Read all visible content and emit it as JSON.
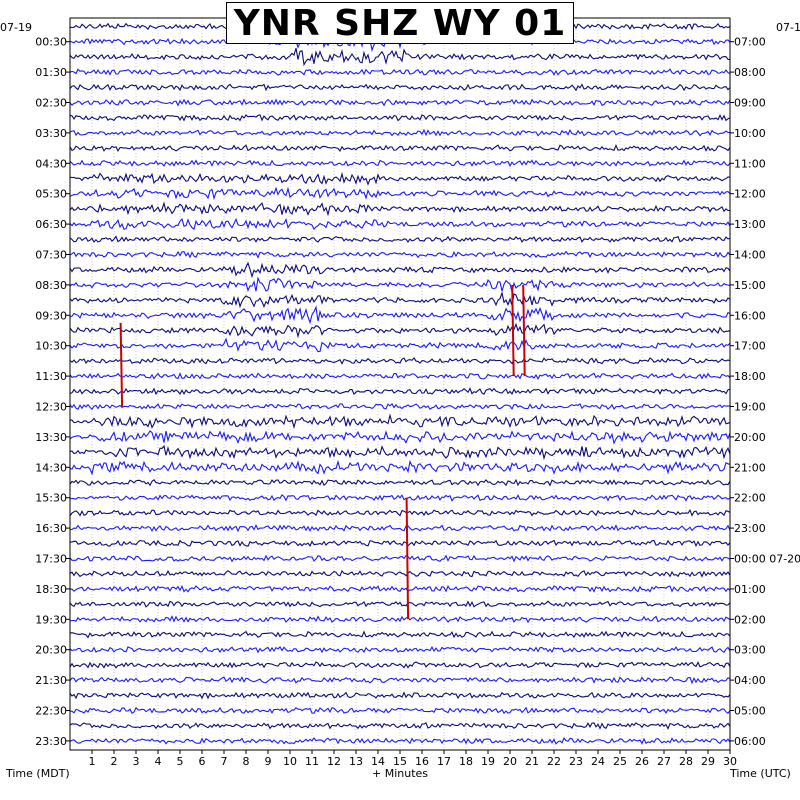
{
  "chart_data": {
    "type": "line",
    "title": "YNR SHZ WY 01",
    "xlabel": "+ Minutes",
    "ylabel_left": "Time (MDT)",
    "ylabel_right": "Time (UTC)",
    "date_left_corner": "07-19",
    "date_right_corner": "07-1",
    "xlim": [
      0,
      30
    ],
    "x_ticks": [
      "1",
      "2",
      "3",
      "4",
      "5",
      "6",
      "7",
      "8",
      "9",
      "10",
      "11",
      "12",
      "13",
      "14",
      "15",
      "16",
      "17",
      "18",
      "19",
      "20",
      "21",
      "22",
      "23",
      "24",
      "25",
      "26",
      "27",
      "28",
      "29",
      "30"
    ],
    "rows_per_label": 2,
    "left_labels": [
      "00:30",
      "01:30",
      "02:30",
      "03:30",
      "04:30",
      "05:30",
      "06:30",
      "07:30",
      "08:30",
      "09:30",
      "10:30",
      "11:30",
      "12:30",
      "13:30",
      "14:30",
      "15:30",
      "16:30",
      "17:30",
      "18:30",
      "19:30",
      "20:30",
      "21:30",
      "22:30",
      "23:30"
    ],
    "right_labels": [
      "07:00",
      "08:00",
      "09:00",
      "10:00",
      "11:00",
      "12:00",
      "13:00",
      "14:00",
      "15:00",
      "16:00",
      "17:00",
      "18:00",
      "19:00",
      "20:00",
      "21:00",
      "22:00",
      "23:00",
      "00:00 07-20",
      "01:00",
      "02:00",
      "03:00",
      "04:00",
      "05:00",
      "06:00"
    ],
    "series_colors": [
      "#0a0a7a",
      "#1a1aff"
    ],
    "highlight_color": "#cc0000",
    "grid": true,
    "events": [
      {
        "rows": [
          1,
          2
        ],
        "from_min": 9.8,
        "to_min": 15.5,
        "amp": 0.9
      },
      {
        "rows": [
          16,
          17,
          18,
          19,
          20,
          21
        ],
        "from_min": 7.0,
        "to_min": 11.5,
        "amp": 0.8
      },
      {
        "rows": [
          17,
          18,
          19,
          20,
          21
        ],
        "from_min": 19.0,
        "to_min": 22.0,
        "amp": 0.8
      },
      {
        "rows": [
          26,
          27,
          28,
          29
        ],
        "from_min": 1.0,
        "to_min": 30.0,
        "amp": 0.55
      },
      {
        "rows": [
          10,
          11,
          12,
          13
        ],
        "from_min": 1.0,
        "to_min": 14.0,
        "amp": 0.5
      }
    ],
    "picks": [
      {
        "min": 2.3,
        "rows_from": 19.5,
        "rows_to": 25
      },
      {
        "min": 20.1,
        "rows_from": 17,
        "rows_to": 23
      },
      {
        "min": 20.6,
        "rows_from": 17,
        "rows_to": 23
      },
      {
        "min": 15.3,
        "rows_from": 31,
        "rows_to": 39
      }
    ]
  }
}
